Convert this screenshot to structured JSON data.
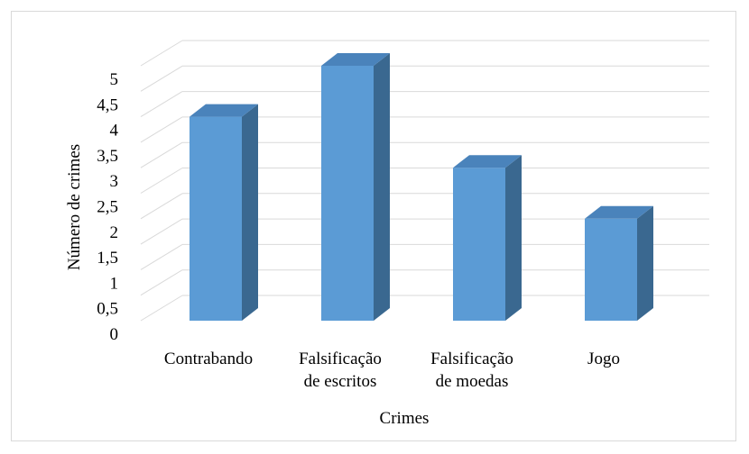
{
  "chart_data": {
    "type": "bar",
    "style": "3d-column",
    "categories": [
      [
        "Contrabando"
      ],
      [
        "Falsificação",
        "de escritos"
      ],
      [
        "Falsificação",
        "de moedas"
      ],
      [
        "Jogo"
      ]
    ],
    "values": [
      4,
      5,
      3,
      2
    ],
    "xlabel": "Crimes",
    "ylabel": "Número de crimes",
    "ylim": [
      0,
      5
    ],
    "yticks": [
      "0",
      "0,5",
      "1",
      "1,5",
      "2",
      "2,5",
      "3",
      "3,5",
      "4",
      "4,5",
      "5"
    ],
    "grid": true,
    "legend": "none",
    "colors": {
      "front": "#5b9bd5",
      "side": "#3a6890",
      "top": "#4a83bb",
      "grid": "#d9d9d9",
      "border": "#d9d9d9"
    }
  }
}
